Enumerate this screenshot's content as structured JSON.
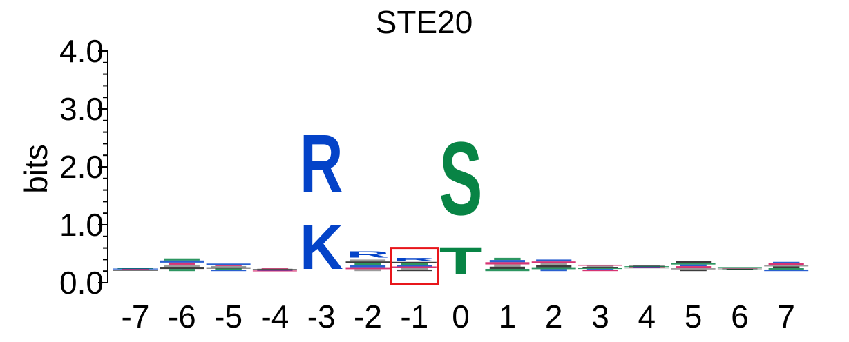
{
  "chart_data": {
    "type": "sequence-logo",
    "title": "STE20",
    "ylabel": "bits",
    "xlabel": "",
    "ylim": [
      0,
      4.0
    ],
    "y_ticks": [
      "0.0",
      "1.0",
      "2.0",
      "3.0",
      "4.0"
    ],
    "positions": [
      "-7",
      "-6",
      "-5",
      "-4",
      "-3",
      "-2",
      "-1",
      "0",
      "1",
      "2",
      "3",
      "4",
      "5",
      "6",
      "7"
    ],
    "letters": [
      {
        "position": "-3",
        "letter": "K",
        "bits_from": 0.0,
        "bits_to": 1.22,
        "color": "#0443c8"
      },
      {
        "position": "-3",
        "letter": "R",
        "bits_from": 1.25,
        "bits_to": 2.85,
        "color": "#0443c8"
      },
      {
        "position": "-2",
        "letter": "R",
        "bits_from": 0.4,
        "bits_to": 0.57,
        "color": "#0443c8"
      },
      {
        "position": "-1",
        "letter": "R",
        "bits_from": 0.36,
        "bits_to": 0.44,
        "color": "#0443c8"
      },
      {
        "position": "0",
        "letter": "T",
        "bits_from": 0.0,
        "bits_to": 0.75,
        "color": "#088445"
      },
      {
        "position": "0",
        "letter": "S",
        "bits_from": 0.78,
        "bits_to": 2.8,
        "color": "#088445"
      }
    ],
    "minor_stacks": [
      {
        "position": "-7",
        "total_bits": 0.26
      },
      {
        "position": "-6",
        "total_bits": 0.42
      },
      {
        "position": "-5",
        "total_bits": 0.33
      },
      {
        "position": "-4",
        "total_bits": 0.25
      },
      {
        "position": "-2",
        "total_bits": 0.4
      },
      {
        "position": "-1",
        "total_bits": 0.36
      },
      {
        "position": "1",
        "total_bits": 0.43
      },
      {
        "position": "2",
        "total_bits": 0.4
      },
      {
        "position": "3",
        "total_bits": 0.31
      },
      {
        "position": "4",
        "total_bits": 0.3
      },
      {
        "position": "5",
        "total_bits": 0.37
      },
      {
        "position": "6",
        "total_bits": 0.27
      },
      {
        "position": "7",
        "total_bits": 0.36
      }
    ],
    "colors": {
      "basic": "#0443c8",
      "polar": "#088445",
      "hydrophobic": "#1a1a1a",
      "acidic": "#d0105a",
      "highlight_box": "#e8161b"
    },
    "highlight_position": "-1"
  }
}
